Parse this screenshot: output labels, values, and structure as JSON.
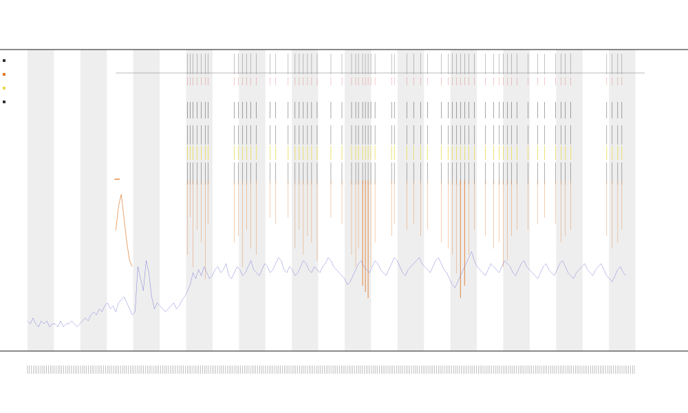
{
  "chart_data": {
    "type": "line",
    "title": "",
    "subtitle_lines": [
      "",
      ""
    ],
    "xlabel": "",
    "ylabel": "",
    "grid": false,
    "legend": {
      "placement": "left",
      "entries": [
        {
          "name": "",
          "color": "#333333"
        },
        {
          "name": "",
          "color": "#e07a2c"
        },
        {
          "name": "",
          "color": "#e8d84a"
        },
        {
          "name": "",
          "color": "#333333"
        }
      ]
    },
    "band_count": 12,
    "band_color": "#eeeeee",
    "x_range": [
      0,
      920
    ],
    "y_range": [
      0,
      100
    ],
    "tick_count": 320,
    "row_labels": [
      "",
      ""
    ],
    "series": [
      {
        "kind": "baseline",
        "color": "#6b6bd6",
        "x_start": 0,
        "x_step": 4,
        "values": [
          10,
          9,
          11,
          9,
          8,
          10,
          9,
          10,
          8,
          9,
          9,
          8,
          10,
          8,
          9,
          9,
          10,
          9,
          8,
          9,
          10,
          11,
          10,
          12,
          13,
          12,
          14,
          13,
          15,
          16,
          14,
          15,
          13,
          16,
          17,
          18,
          16,
          14,
          12,
          13,
          28,
          24,
          20,
          30,
          26,
          18,
          14,
          16,
          15,
          14,
          13,
          14,
          15,
          16,
          14,
          15,
          17,
          18,
          20,
          22,
          26,
          24,
          27,
          25,
          28,
          26,
          24,
          25,
          27,
          28,
          26,
          27,
          29,
          25,
          24,
          26,
          28,
          27,
          25,
          26,
          28,
          30,
          27,
          26,
          25,
          27,
          29,
          28,
          26,
          27,
          29,
          31,
          30,
          27,
          26,
          28,
          27,
          25,
          26,
          28,
          30,
          29,
          27,
          26,
          28,
          27,
          26,
          28,
          29,
          31,
          30,
          28,
          27,
          26,
          25,
          24,
          22,
          23,
          25,
          27,
          29,
          30,
          28,
          27,
          26,
          28,
          30,
          29,
          27,
          26,
          25,
          27,
          29,
          31,
          30,
          28,
          26,
          25,
          27,
          28,
          29,
          30,
          31,
          29,
          28,
          27,
          26,
          28,
          30,
          31,
          29,
          27,
          26,
          24,
          22,
          21,
          23,
          25,
          27,
          29,
          31,
          33,
          30,
          28,
          27,
          26,
          25,
          27,
          29,
          28,
          27,
          26,
          28,
          30,
          29,
          28,
          26,
          25,
          27,
          29,
          30,
          28,
          27,
          26,
          25,
          24,
          26,
          28,
          29,
          27,
          26,
          25,
          27,
          29,
          30,
          28,
          26,
          25,
          24,
          26,
          27,
          28,
          29,
          27,
          26,
          25,
          27,
          28,
          29,
          27,
          25,
          24,
          23,
          25,
          27,
          28,
          26,
          25
        ]
      },
      {
        "kind": "secondary",
        "color": "#e07a2c",
        "x_start": 128,
        "x_step": 4,
        "values": [
          40,
          48,
          52,
          44,
          36,
          30,
          28
        ]
      }
    ],
    "event_columns": [
      {
        "x": 232,
        "h": 0.6
      },
      {
        "x": 236,
        "h": 0.3
      },
      {
        "x": 240,
        "h": 0.7
      },
      {
        "x": 246,
        "h": 0.4
      },
      {
        "x": 252,
        "h": 0.5
      },
      {
        "x": 258,
        "h": 0.8
      },
      {
        "x": 262,
        "h": 0.35
      },
      {
        "x": 300,
        "h": 0.5
      },
      {
        "x": 306,
        "h": 0.45
      },
      {
        "x": 312,
        "h": 0.7
      },
      {
        "x": 318,
        "h": 0.4
      },
      {
        "x": 324,
        "h": 0.55
      },
      {
        "x": 332,
        "h": 0.6
      },
      {
        "x": 352,
        "h": 0.3
      },
      {
        "x": 360,
        "h": 0.35
      },
      {
        "x": 378,
        "h": 0.3
      },
      {
        "x": 388,
        "h": 0.55
      },
      {
        "x": 394,
        "h": 0.4
      },
      {
        "x": 400,
        "h": 0.6
      },
      {
        "x": 406,
        "h": 0.45
      },
      {
        "x": 412,
        "h": 0.5
      },
      {
        "x": 420,
        "h": 0.65
      },
      {
        "x": 440,
        "h": 0.3
      },
      {
        "x": 456,
        "h": 0.35
      },
      {
        "x": 470,
        "h": 0.6
      },
      {
        "x": 476,
        "h": 0.7
      },
      {
        "x": 480,
        "h": 0.55
      },
      {
        "x": 486,
        "h": 0.85
      },
      {
        "x": 490,
        "h": 0.9
      },
      {
        "x": 494,
        "h": 0.95
      },
      {
        "x": 498,
        "h": 0.7
      },
      {
        "x": 504,
        "h": 0.5
      },
      {
        "x": 528,
        "h": 0.45
      },
      {
        "x": 532,
        "h": 0.35
      },
      {
        "x": 550,
        "h": 0.4
      },
      {
        "x": 560,
        "h": 0.35
      },
      {
        "x": 570,
        "h": 0.45
      },
      {
        "x": 580,
        "h": 0.4
      },
      {
        "x": 600,
        "h": 0.5
      },
      {
        "x": 610,
        "h": 0.55
      },
      {
        "x": 616,
        "h": 0.6
      },
      {
        "x": 622,
        "h": 0.75
      },
      {
        "x": 628,
        "h": 0.95
      },
      {
        "x": 634,
        "h": 0.85
      },
      {
        "x": 640,
        "h": 0.6
      },
      {
        "x": 648,
        "h": 0.4
      },
      {
        "x": 664,
        "h": 0.45
      },
      {
        "x": 676,
        "h": 0.55
      },
      {
        "x": 684,
        "h": 0.5
      },
      {
        "x": 690,
        "h": 0.7
      },
      {
        "x": 696,
        "h": 0.65
      },
      {
        "x": 702,
        "h": 0.45
      },
      {
        "x": 710,
        "h": 0.4
      },
      {
        "x": 726,
        "h": 0.4
      },
      {
        "x": 740,
        "h": 0.35
      },
      {
        "x": 750,
        "h": 0.3
      },
      {
        "x": 766,
        "h": 0.35
      },
      {
        "x": 774,
        "h": 0.5
      },
      {
        "x": 780,
        "h": 0.45
      },
      {
        "x": 788,
        "h": 0.4
      },
      {
        "x": 840,
        "h": 0.45
      },
      {
        "x": 848,
        "h": 0.55
      },
      {
        "x": 856,
        "h": 0.5
      },
      {
        "x": 862,
        "h": 0.4
      }
    ]
  }
}
